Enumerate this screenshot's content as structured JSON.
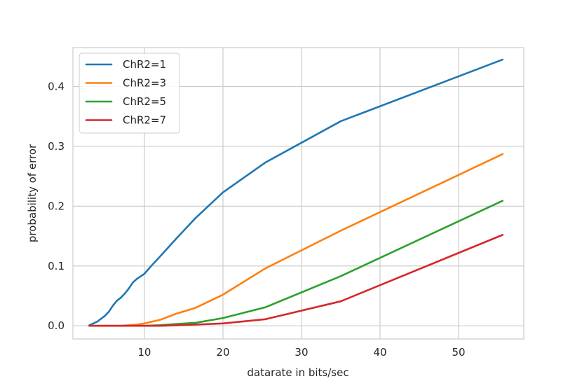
{
  "chart_data": {
    "type": "line",
    "title": "",
    "xlabel": "datarate in bits/sec",
    "ylabel": "probability of error",
    "xlim": [
      0.9,
      58.3
    ],
    "ylim": [
      -0.022,
      0.465
    ],
    "xticks": [
      10,
      20,
      30,
      40,
      50
    ],
    "yticks": [
      0.0,
      0.1,
      0.2,
      0.3,
      0.4
    ],
    "xtick_labels": [
      "10",
      "20",
      "30",
      "40",
      "50"
    ],
    "ytick_labels": [
      "0.0",
      "0.1",
      "0.2",
      "0.3",
      "0.4"
    ],
    "grid": true,
    "legend_position": "top-left",
    "series": [
      {
        "name": "ChR2=1",
        "color": "#1f77b4",
        "x": [
          3.0,
          3.5,
          4.0,
          4.5,
          5.0,
          5.5,
          6.0,
          6.5,
          7.0,
          7.5,
          8.0,
          8.5,
          9.0,
          10.0,
          11.0,
          12.0,
          14.0,
          16.5,
          20.0,
          25.4,
          35.0,
          55.6
        ],
        "y": [
          0.001,
          0.004,
          0.007,
          0.012,
          0.017,
          0.024,
          0.034,
          0.042,
          0.047,
          0.054,
          0.062,
          0.072,
          0.078,
          0.087,
          0.102,
          0.116,
          0.145,
          0.18,
          0.223,
          0.273,
          0.342,
          0.445
        ]
      },
      {
        "name": "ChR2=3",
        "color": "#ff7f0e",
        "x": [
          3.0,
          5.0,
          7.0,
          9.0,
          10.0,
          12.0,
          14.0,
          16.5,
          20.0,
          25.4,
          35.0,
          55.6
        ],
        "y": [
          0.0,
          0.0,
          0.0,
          0.002,
          0.004,
          0.01,
          0.02,
          0.03,
          0.052,
          0.096,
          0.159,
          0.287
        ]
      },
      {
        "name": "ChR2=5",
        "color": "#2ca02c",
        "x": [
          3.0,
          5.0,
          8.0,
          10.0,
          12.0,
          14.0,
          16.5,
          20.0,
          25.4,
          35.0,
          55.6
        ],
        "y": [
          0.0,
          0.0,
          0.0,
          0.0,
          0.001,
          0.003,
          0.005,
          0.013,
          0.031,
          0.083,
          0.209
        ]
      },
      {
        "name": "ChR2=7",
        "color": "#d62728",
        "x": [
          3.0,
          8.0,
          12.0,
          16.5,
          20.0,
          25.4,
          35.0,
          55.6
        ],
        "y": [
          0.0,
          0.0,
          0.0,
          0.002,
          0.004,
          0.011,
          0.041,
          0.152
        ]
      }
    ]
  }
}
